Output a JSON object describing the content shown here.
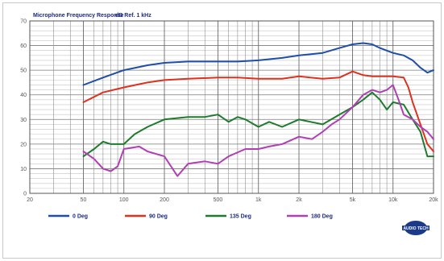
{
  "chart_data": {
    "type": "line",
    "title": "Microphone Frequency Response",
    "subtitle": "dB Ref. 1 kHz",
    "x_scale": "log",
    "xlim": [
      20,
      20000
    ],
    "ylim": [
      0,
      70
    ],
    "y_ticks": [
      0,
      10,
      20,
      30,
      40,
      50,
      60,
      70
    ],
    "x_ticks": [
      {
        "value": 20,
        "label": "20"
      },
      {
        "value": 50,
        "label": "50"
      },
      {
        "value": 100,
        "label": "100"
      },
      {
        "value": 200,
        "label": "200"
      },
      {
        "value": 500,
        "label": "500"
      },
      {
        "value": 1000,
        "label": "1k"
      },
      {
        "value": 2000,
        "label": "2k"
      },
      {
        "value": 5000,
        "label": "5k"
      },
      {
        "value": 10000,
        "label": "10k"
      },
      {
        "value": 20000,
        "label": "20k"
      }
    ],
    "grid": true,
    "legend_position": "bottom",
    "series": [
      {
        "name": "0 Deg",
        "color": "#1f4ea8",
        "points": [
          [
            50,
            44
          ],
          [
            70,
            47
          ],
          [
            100,
            50
          ],
          [
            150,
            52
          ],
          [
            200,
            53
          ],
          [
            300,
            53.5
          ],
          [
            500,
            53.5
          ],
          [
            700,
            53.5
          ],
          [
            1000,
            54
          ],
          [
            1500,
            55
          ],
          [
            2000,
            56
          ],
          [
            3000,
            57
          ],
          [
            4000,
            59
          ],
          [
            5000,
            60.5
          ],
          [
            6000,
            61
          ],
          [
            7000,
            60.5
          ],
          [
            8000,
            59
          ],
          [
            10000,
            57
          ],
          [
            12000,
            56
          ],
          [
            14000,
            54
          ],
          [
            16000,
            51
          ],
          [
            18000,
            49
          ],
          [
            20000,
            50
          ]
        ]
      },
      {
        "name": "90 Deg",
        "color": "#e0301e",
        "points": [
          [
            50,
            37
          ],
          [
            70,
            41
          ],
          [
            100,
            43
          ],
          [
            150,
            45
          ],
          [
            200,
            46
          ],
          [
            300,
            46.5
          ],
          [
            500,
            47
          ],
          [
            700,
            47
          ],
          [
            1000,
            46.5
          ],
          [
            1500,
            46.5
          ],
          [
            2000,
            47.5
          ],
          [
            3000,
            46.5
          ],
          [
            4000,
            47
          ],
          [
            5000,
            49.5
          ],
          [
            6000,
            48
          ],
          [
            7000,
            47.5
          ],
          [
            10000,
            47.5
          ],
          [
            12000,
            47
          ],
          [
            13000,
            43
          ],
          [
            14000,
            37
          ],
          [
            16000,
            28
          ],
          [
            18000,
            20
          ],
          [
            20000,
            17
          ]
        ]
      },
      {
        "name": "135 Deg",
        "color": "#1e7a2e",
        "points": [
          [
            50,
            15
          ],
          [
            60,
            18
          ],
          [
            70,
            21
          ],
          [
            80,
            20
          ],
          [
            100,
            20
          ],
          [
            120,
            24
          ],
          [
            150,
            27
          ],
          [
            200,
            30
          ],
          [
            300,
            31
          ],
          [
            400,
            31
          ],
          [
            500,
            32
          ],
          [
            600,
            29
          ],
          [
            700,
            31
          ],
          [
            800,
            30
          ],
          [
            1000,
            27
          ],
          [
            1200,
            29
          ],
          [
            1500,
            27
          ],
          [
            2000,
            30
          ],
          [
            3000,
            28
          ],
          [
            4000,
            32
          ],
          [
            5000,
            35
          ],
          [
            6000,
            38
          ],
          [
            7000,
            41
          ],
          [
            8000,
            38
          ],
          [
            9000,
            34
          ],
          [
            10000,
            37
          ],
          [
            12000,
            36
          ],
          [
            14000,
            30
          ],
          [
            16000,
            25
          ],
          [
            18000,
            15
          ],
          [
            20000,
            15
          ]
        ]
      },
      {
        "name": "180 Deg",
        "color": "#b03fb5",
        "points": [
          [
            50,
            17
          ],
          [
            60,
            14
          ],
          [
            70,
            10
          ],
          [
            80,
            9
          ],
          [
            90,
            11
          ],
          [
            100,
            18
          ],
          [
            130,
            19
          ],
          [
            150,
            17
          ],
          [
            200,
            15
          ],
          [
            250,
            7
          ],
          [
            300,
            12
          ],
          [
            400,
            13
          ],
          [
            500,
            12
          ],
          [
            600,
            15
          ],
          [
            800,
            18
          ],
          [
            1000,
            18
          ],
          [
            1200,
            19
          ],
          [
            1500,
            20
          ],
          [
            2000,
            23
          ],
          [
            2500,
            22
          ],
          [
            3000,
            25
          ],
          [
            3500,
            28
          ],
          [
            4000,
            30
          ],
          [
            5000,
            35
          ],
          [
            6000,
            40
          ],
          [
            7000,
            42
          ],
          [
            8000,
            41
          ],
          [
            9000,
            42
          ],
          [
            10000,
            44
          ],
          [
            11000,
            38
          ],
          [
            12000,
            32
          ],
          [
            14000,
            30
          ],
          [
            16000,
            27
          ],
          [
            18000,
            25
          ],
          [
            20000,
            22
          ]
        ]
      }
    ]
  },
  "branding": {
    "logo_color": "#1c3a8a",
    "logo_text": "AUDIO TECH"
  }
}
